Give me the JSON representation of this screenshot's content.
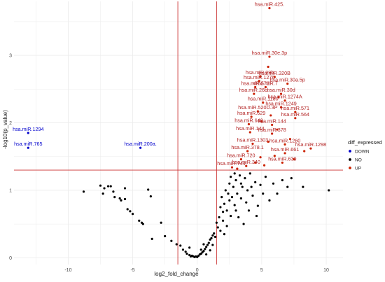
{
  "chart_data": {
    "type": "scatter",
    "title": "",
    "xlabel": "log2_fold_change",
    "ylabel": "-log10(p_value)",
    "xlim": [
      -14.2,
      11.3
    ],
    "ylim": [
      -0.1,
      3.8
    ],
    "x_ticks": [
      -10,
      -5,
      0,
      5,
      10
    ],
    "y_ticks": [
      0,
      1,
      2,
      3
    ],
    "grid": true,
    "vlines": [
      -1.5,
      1.5
    ],
    "hline": 1.3,
    "colors": {
      "DOWN": "#0000cc",
      "NO": "#000000",
      "UP": "#cc2200",
      "threshold": "#cc3333",
      "label_up": "#b22222",
      "label_down": "#0000cc"
    },
    "legend": {
      "title": "diff_expressed",
      "placement": "right",
      "entries": [
        "DOWN",
        "NO",
        "UP"
      ]
    },
    "series": [
      {
        "name": "DOWN",
        "points": [
          {
            "x": -13.1,
            "y": 1.85,
            "label": "hsa.miR.1294"
          },
          {
            "x": -13.1,
            "y": 1.63,
            "label": "hsa.miR.765"
          },
          {
            "x": -4.4,
            "y": 1.63,
            "label": "hsa.miR.200a."
          }
        ]
      },
      {
        "name": "UP",
        "points": [
          {
            "x": 5.6,
            "y": 3.7,
            "label": "hsa.miR.425."
          },
          {
            "x": 5.6,
            "y": 2.98,
            "label": "hsa.miR.30e.3p"
          },
          {
            "x": 4.9,
            "y": 2.69,
            "label": "hsa.miR.99b."
          },
          {
            "x": 4.8,
            "y": 2.62,
            "label": "hsa.miR.1276"
          },
          {
            "x": 6.0,
            "y": 2.68,
            "label": "hsa.miR.320B"
          },
          {
            "x": 7.0,
            "y": 2.58,
            "label": "hsa.miR.30a.5p"
          },
          {
            "x": 4.5,
            "y": 2.53,
            "label": "hsa.miR.572"
          },
          {
            "x": 5.3,
            "y": 2.53,
            "label": "dme.miR.7"
          },
          {
            "x": 6.5,
            "y": 2.43,
            "label": "hsa.miR.30d"
          },
          {
            "x": 4.4,
            "y": 2.43,
            "label": "hsa.miR.26b."
          },
          {
            "x": 6.8,
            "y": 2.33,
            "label": "hsa.miR.1274A"
          },
          {
            "x": 5.1,
            "y": 2.3,
            "label": "hsa.miR.1180"
          },
          {
            "x": 6.5,
            "y": 2.23,
            "label": "hsa.miR.1249"
          },
          {
            "x": 4.7,
            "y": 2.17,
            "label": "hsa.miR.520D.3P"
          },
          {
            "x": 7.6,
            "y": 2.16,
            "label": "hsa.miR.571"
          },
          {
            "x": 4.2,
            "y": 2.09,
            "label": "hsa.miR.629"
          },
          {
            "x": 7.6,
            "y": 2.07,
            "label": "hsa.miR.564"
          },
          {
            "x": 4.0,
            "y": 1.98,
            "label": "hsa.miR.648"
          },
          {
            "x": 5.8,
            "y": 1.97,
            "label": "hsa.miR.144"
          },
          {
            "x": 4.1,
            "y": 1.86,
            "label": "hsa.miR.144"
          },
          {
            "x": 5.8,
            "y": 1.84,
            "label": "hsa.miR.378"
          },
          {
            "x": 4.3,
            "y": 1.69,
            "label": "hsa.miR.1303"
          },
          {
            "x": 6.8,
            "y": 1.68,
            "label": "hsa.miR.1260"
          },
          {
            "x": 8.8,
            "y": 1.62,
            "label": "hsa.miR.1298"
          },
          {
            "x": 3.9,
            "y": 1.58,
            "label": "hsa.miR.378.1"
          },
          {
            "x": 6.8,
            "y": 1.55,
            "label": "hsa.miR.661"
          },
          {
            "x": 3.4,
            "y": 1.46,
            "label": "hsa.miR.720"
          },
          {
            "x": 6.6,
            "y": 1.41,
            "label": "hsa.miR.639"
          },
          {
            "x": 3.8,
            "y": 1.36,
            "label": "hsa.miR.340"
          },
          {
            "x": 2.7,
            "y": 1.34,
            "label": "hsa.miR.744."
          },
          {
            "x": 5.5,
            "y": 2.83
          },
          {
            "x": 6.3,
            "y": 2.38
          },
          {
            "x": 5.7,
            "y": 2.11
          },
          {
            "x": 5.0,
            "y": 2.02
          },
          {
            "x": 6.2,
            "y": 1.9
          },
          {
            "x": 5.5,
            "y": 1.72
          },
          {
            "x": 7.2,
            "y": 1.76
          },
          {
            "x": 4.9,
            "y": 1.49
          },
          {
            "x": 7.5,
            "y": 1.46
          },
          {
            "x": 6.0,
            "y": 1.51
          },
          {
            "x": 8.3,
            "y": 1.58
          },
          {
            "x": 3.1,
            "y": 1.32
          },
          {
            "x": 4.5,
            "y": 1.41
          },
          {
            "x": 5.2,
            "y": 1.37
          }
        ]
      },
      {
        "name": "NO",
        "points": [
          {
            "x": -8.8,
            "y": 0.98
          },
          {
            "x": -7.5,
            "y": 1.07
          },
          {
            "x": -7.2,
            "y": 1.03
          },
          {
            "x": -7.3,
            "y": 0.95
          },
          {
            "x": -6.9,
            "y": 1.06
          },
          {
            "x": -6.7,
            "y": 1.06
          },
          {
            "x": -6.5,
            "y": 0.98
          },
          {
            "x": -6.4,
            "y": 0.9
          },
          {
            "x": -6.0,
            "y": 0.88
          },
          {
            "x": -5.9,
            "y": 0.85
          },
          {
            "x": -5.6,
            "y": 0.87
          },
          {
            "x": -5.4,
            "y": 0.72
          },
          {
            "x": -5.6,
            "y": 1.03
          },
          {
            "x": -5.2,
            "y": 0.69
          },
          {
            "x": -5.0,
            "y": 0.65
          },
          {
            "x": -4.5,
            "y": 0.55
          },
          {
            "x": -4.3,
            "y": 0.52
          },
          {
            "x": -4.2,
            "y": 0.5
          },
          {
            "x": -3.8,
            "y": 1.01
          },
          {
            "x": -3.6,
            "y": 0.91
          },
          {
            "x": -3.5,
            "y": 0.28
          },
          {
            "x": -2.8,
            "y": 0.52
          },
          {
            "x": -2.5,
            "y": 0.32
          },
          {
            "x": -2.0,
            "y": 0.25
          },
          {
            "x": -1.6,
            "y": 0.2
          },
          {
            "x": -1.3,
            "y": 0.18
          },
          {
            "x": -1.1,
            "y": 0.12
          },
          {
            "x": -0.9,
            "y": 0.09
          },
          {
            "x": -0.8,
            "y": 0.06
          },
          {
            "x": -0.6,
            "y": 0.04
          },
          {
            "x": -0.5,
            "y": 0.02
          },
          {
            "x": -0.4,
            "y": 0.03
          },
          {
            "x": -0.3,
            "y": 0.02
          },
          {
            "x": -0.2,
            "y": 0.01
          },
          {
            "x": -0.1,
            "y": 0.02
          },
          {
            "x": 0.0,
            "y": 0.01
          },
          {
            "x": 0.1,
            "y": 0.03
          },
          {
            "x": 0.2,
            "y": 0.05
          },
          {
            "x": 0.3,
            "y": 0.06
          },
          {
            "x": 0.4,
            "y": 0.08
          },
          {
            "x": 0.5,
            "y": 0.1
          },
          {
            "x": 0.6,
            "y": 0.13
          },
          {
            "x": 0.7,
            "y": 0.16
          },
          {
            "x": 0.8,
            "y": 0.19
          },
          {
            "x": 0.9,
            "y": 0.22
          },
          {
            "x": 1.0,
            "y": 0.27
          },
          {
            "x": 1.1,
            "y": 0.29
          },
          {
            "x": 1.2,
            "y": 0.33
          },
          {
            "x": 1.3,
            "y": 0.36
          },
          {
            "x": 1.4,
            "y": 0.31
          },
          {
            "x": 0.3,
            "y": 0.12
          },
          {
            "x": 0.7,
            "y": 0.05
          },
          {
            "x": 1.0,
            "y": 0.11
          },
          {
            "x": -0.6,
            "y": 0.15
          },
          {
            "x": 0.5,
            "y": 0.2
          },
          {
            "x": 1.2,
            "y": 0.19
          },
          {
            "x": 1.7,
            "y": 0.6
          },
          {
            "x": 1.8,
            "y": 0.75
          },
          {
            "x": 1.9,
            "y": 0.9
          },
          {
            "x": 2.0,
            "y": 0.55
          },
          {
            "x": 2.1,
            "y": 0.8
          },
          {
            "x": 2.2,
            "y": 1.0
          },
          {
            "x": 2.3,
            "y": 0.7
          },
          {
            "x": 2.4,
            "y": 0.95
          },
          {
            "x": 2.5,
            "y": 1.1
          },
          {
            "x": 2.5,
            "y": 0.85
          },
          {
            "x": 2.6,
            "y": 1.2
          },
          {
            "x": 2.7,
            "y": 0.9
          },
          {
            "x": 2.8,
            "y": 1.05
          },
          {
            "x": 2.9,
            "y": 0.78
          },
          {
            "x": 3.0,
            "y": 1.15
          },
          {
            "x": 3.1,
            "y": 0.95
          },
          {
            "x": 3.2,
            "y": 0.6
          },
          {
            "x": 3.3,
            "y": 1.22
          },
          {
            "x": 3.4,
            "y": 0.88
          },
          {
            "x": 3.5,
            "y": 1.05
          },
          {
            "x": 3.6,
            "y": 0.5
          },
          {
            "x": 3.7,
            "y": 1.18
          },
          {
            "x": 3.8,
            "y": 0.82
          },
          {
            "x": 3.9,
            "y": 1.0
          },
          {
            "x": 4.0,
            "y": 0.7
          },
          {
            "x": 4.1,
            "y": 1.25
          },
          {
            "x": 4.3,
            "y": 0.92
          },
          {
            "x": 4.5,
            "y": 1.12
          },
          {
            "x": 4.7,
            "y": 0.77
          },
          {
            "x": 4.9,
            "y": 1.08
          },
          {
            "x": 5.1,
            "y": 0.95
          },
          {
            "x": 5.3,
            "y": 1.2
          },
          {
            "x": 5.6,
            "y": 0.85
          },
          {
            "x": 5.9,
            "y": 1.1
          },
          {
            "x": 6.2,
            "y": 0.95
          },
          {
            "x": 6.6,
            "y": 1.15
          },
          {
            "x": 7.0,
            "y": 1.05
          },
          {
            "x": 7.3,
            "y": 1.18
          },
          {
            "x": 8.2,
            "y": 1.05
          },
          {
            "x": 10.2,
            "y": 1.0
          },
          {
            "x": 1.8,
            "y": 0.4
          },
          {
            "x": 2.1,
            "y": 0.35
          },
          {
            "x": 2.3,
            "y": 0.47
          },
          {
            "x": 1.6,
            "y": 0.45
          },
          {
            "x": 2.0,
            "y": 0.68
          },
          {
            "x": 2.6,
            "y": 0.62
          },
          {
            "x": 3.0,
            "y": 0.7
          },
          {
            "x": 1.5,
            "y": 0.52
          },
          {
            "x": 4.6,
            "y": 0.62
          },
          {
            "x": 3.4,
            "y": 1.1
          },
          {
            "x": 2.9,
            "y": 1.25
          },
          {
            "x": 4.2,
            "y": 1.05
          }
        ]
      }
    ]
  }
}
